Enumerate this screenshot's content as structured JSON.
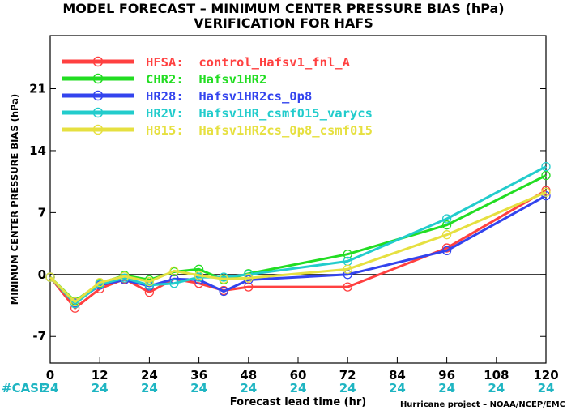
{
  "chart_data": {
    "type": "line",
    "title": "MODEL FORECAST – MINIMUM CENTER PRESSURE BIAS (hPa)",
    "subtitle": "VERIFICATION FOR HAFS",
    "xlabel": "Forecast lead time (hr)",
    "ylabel": "MINIMUM CENTER PRESSURE BIAS (hPa)",
    "xlim": [
      0,
      120
    ],
    "ylim": [
      -10,
      27
    ],
    "x_ticks": [
      0,
      12,
      24,
      36,
      48,
      60,
      72,
      84,
      96,
      108,
      120
    ],
    "y_ticks": [
      -7,
      0,
      7,
      14,
      21
    ],
    "x": [
      0,
      6,
      12,
      18,
      24,
      30,
      36,
      42,
      48,
      72,
      96,
      120
    ],
    "case_label": "#CASE",
    "case_counts": [
      "24",
      "24",
      "24",
      "24",
      "24",
      "24",
      "24",
      "24",
      "24",
      "24",
      "24"
    ],
    "credit": "Hurricane project – NOAA/NCEP/EMC",
    "legend_position": "top-left",
    "series": [
      {
        "name": "HFSA:  control_Hafsv1_fnl_A",
        "color": "#ff4040",
        "values": [
          -0.3,
          -3.8,
          -1.6,
          -0.5,
          -2.0,
          -0.5,
          -1.0,
          -1.8,
          -1.4,
          -1.4,
          3.0,
          9.5
        ]
      },
      {
        "name": "CHR2:  Hafsv1HR2",
        "color": "#22dd22",
        "values": [
          -0.3,
          -3.0,
          -1.0,
          -0.1,
          -0.6,
          0.3,
          0.6,
          -0.6,
          0.1,
          2.3,
          5.6,
          11.2
        ]
      },
      {
        "name": "HR28:  Hafsv1HR2cs_0p8",
        "color": "#3344ee",
        "values": [
          -0.3,
          -3.2,
          -1.2,
          -0.6,
          -1.3,
          -0.5,
          -0.6,
          -1.9,
          -0.6,
          0.0,
          2.7,
          8.9
        ]
      },
      {
        "name": "HR2V:  Hafsv1HR_csmf015_varycs",
        "color": "#22cccc",
        "values": [
          -0.3,
          -3.3,
          -1.1,
          -0.4,
          -1.2,
          -1.0,
          -0.3,
          -0.3,
          0.0,
          1.5,
          6.3,
          12.2
        ]
      },
      {
        "name": "H815:  Hafsv1HR2cs_0p8_csmf015",
        "color": "#e6e040",
        "values": [
          -0.3,
          -3.1,
          -0.9,
          -0.2,
          -0.8,
          0.4,
          -0.1,
          -0.5,
          -0.4,
          0.6,
          4.5,
          9.3
        ]
      }
    ]
  }
}
